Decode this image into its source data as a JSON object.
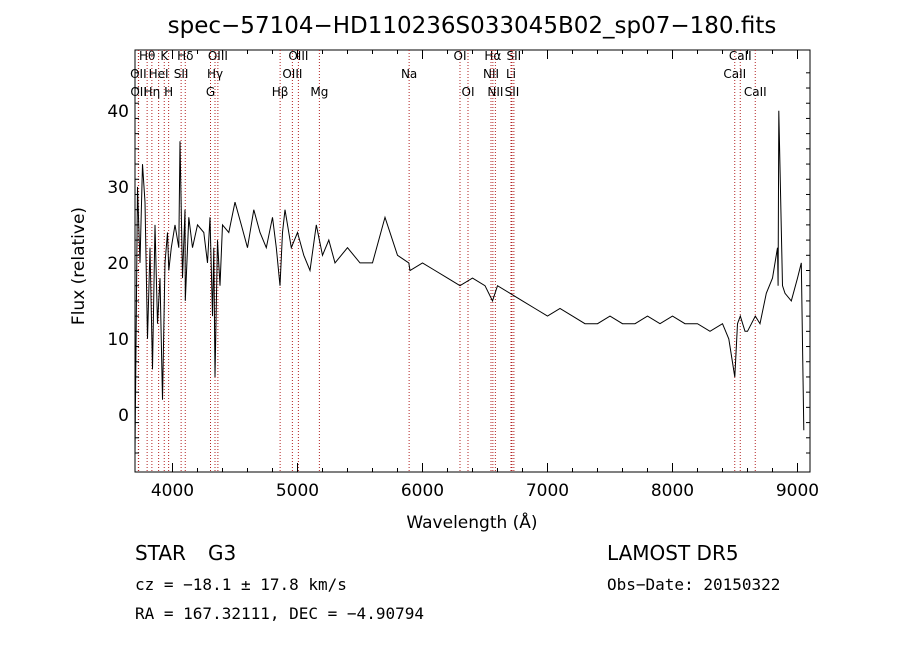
{
  "chart_data": {
    "type": "line",
    "title": "spec−57104−HD110236S033045B02_sp07−180.fits",
    "xlabel": "Wavelength (Å)",
    "ylabel": "Flux (relative)",
    "xlim": [
      3700,
      9100
    ],
    "ylim": [
      -7.5,
      48
    ],
    "xticks": [
      4000,
      5000,
      6000,
      7000,
      8000,
      9000
    ],
    "yticks": [
      0,
      10,
      20,
      30,
      40
    ],
    "grid": false,
    "legend": "none",
    "series": [
      {
        "x": [
          3700,
          3720,
          3740,
          3760,
          3780,
          3800,
          3820,
          3840,
          3860,
          3880,
          3900,
          3920,
          3940,
          3960,
          3970,
          3990,
          4020,
          4050,
          4060,
          4080,
          4100,
          4102,
          4130,
          4160,
          4200,
          4250,
          4280,
          4300,
          4320,
          4330,
          4340,
          4360,
          4380,
          4400,
          4450,
          4500,
          4550,
          4600,
          4650,
          4700,
          4750,
          4800,
          4830,
          4860,
          4880,
          4900,
          4950,
          5000,
          5050,
          5100,
          5150,
          5200,
          5250,
          5300,
          5400,
          5500,
          5600,
          5700,
          5800,
          5890,
          5900,
          6000,
          6100,
          6200,
          6300,
          6400,
          6500,
          6560,
          6600,
          6700,
          6800,
          6900,
          7000,
          7100,
          7200,
          7300,
          7400,
          7500,
          7600,
          7700,
          7800,
          7900,
          8000,
          8100,
          8200,
          8300,
          8400,
          8450,
          8498,
          8520,
          8542,
          8580,
          8600,
          8662,
          8700,
          8750,
          8800,
          8840,
          8845,
          8850,
          8880,
          8900,
          8950,
          9000,
          9030,
          9050
        ],
        "values": [
          -5,
          30,
          20,
          33,
          28,
          10,
          22,
          6,
          25,
          12,
          18,
          2,
          20,
          24,
          19,
          22,
          25,
          22,
          36,
          18,
          27,
          15,
          26,
          22,
          25,
          24,
          20,
          26,
          13,
          22,
          5,
          23,
          17,
          25,
          24,
          28,
          25,
          22,
          27,
          24,
          22,
          26,
          22,
          17,
          24,
          27,
          22,
          24,
          21,
          19,
          25,
          21,
          23,
          20,
          22,
          20,
          20,
          26,
          21,
          20,
          19,
          20,
          19,
          18,
          17,
          18,
          17,
          15,
          17,
          16,
          15,
          14,
          13,
          14,
          13,
          12,
          12,
          13,
          12,
          12,
          13,
          12,
          13,
          12,
          12,
          11,
          12,
          10,
          5,
          12,
          13,
          11,
          11,
          13,
          12,
          16,
          18,
          22,
          17,
          40,
          17,
          16,
          15,
          18,
          20,
          -2
        ]
      }
    ],
    "lines": [
      {
        "label": "Hθ",
        "x": 3797,
        "row": 0
      },
      {
        "label": "K",
        "x": 3934,
        "row": 0
      },
      {
        "label": "Hδ",
        "x": 4102,
        "row": 0
      },
      {
        "label": "OIII",
        "x": 4363,
        "row": 0
      },
      {
        "label": "OIII",
        "x": 5007,
        "row": 0
      },
      {
        "label": "OI",
        "x": 6300,
        "row": 0
      },
      {
        "label": "Hα",
        "x": 6563,
        "row": 0
      },
      {
        "label": "SII",
        "x": 6731,
        "row": 0
      },
      {
        "label": "CaII",
        "x": 8542,
        "row": 0
      },
      {
        "label": "OII",
        "x": 3727,
        "row": 1
      },
      {
        "label": "HeI",
        "x": 3889,
        "row": 1
      },
      {
        "label": "SII",
        "x": 4069,
        "row": 1
      },
      {
        "label": "Hγ",
        "x": 4340,
        "row": 1
      },
      {
        "label": "OIII",
        "x": 4959,
        "row": 1
      },
      {
        "label": "Na",
        "x": 5893,
        "row": 1
      },
      {
        "label": "NII",
        "x": 6548,
        "row": 1
      },
      {
        "label": "Li",
        "x": 6708,
        "row": 1
      },
      {
        "label": "CaII",
        "x": 8498,
        "row": 1
      },
      {
        "label": "OII",
        "x": 3729,
        "row": 2
      },
      {
        "label": "Hη",
        "x": 3835,
        "row": 2
      },
      {
        "label": "H",
        "x": 3969,
        "row": 2
      },
      {
        "label": "G",
        "x": 4304,
        "row": 2
      },
      {
        "label": "Hβ",
        "x": 4861,
        "row": 2
      },
      {
        "label": "Mg",
        "x": 5175,
        "row": 2
      },
      {
        "label": "OI",
        "x": 6364,
        "row": 2
      },
      {
        "label": "NII",
        "x": 6583,
        "row": 2
      },
      {
        "label": "SII",
        "x": 6716,
        "row": 2
      },
      {
        "label": "CaII",
        "x": 8662,
        "row": 2
      }
    ],
    "line_color": "#b22222",
    "series_color": "#000000"
  },
  "info": {
    "class": "STAR",
    "subclass": "G3",
    "survey": "LAMOST DR5",
    "cz": "cz = −18.1 ± 17.8 km/s",
    "obs_date": "Obs−Date: 20150322",
    "radec": "RA = 167.32111, DEC =  −4.90794"
  }
}
